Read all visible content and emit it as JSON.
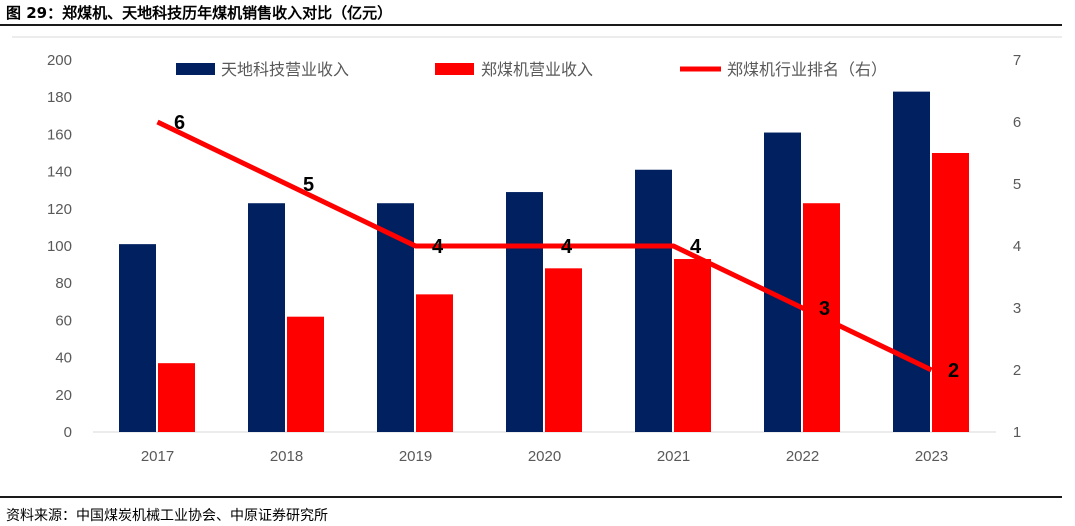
{
  "figure": {
    "title": "图 29：郑煤机、天地科技历年煤机销售收入对比（亿元）",
    "source": "资料来源：中国煤炭机械工业协会、中原证券研究所"
  },
  "colors": {
    "series_navy": "#002060",
    "series_red": "#ff0000",
    "line_red": "#ff0000",
    "tick_text": "#595959",
    "rules": "#1a1a1a"
  },
  "chart_data": {
    "type": "bar",
    "categories": [
      "2017",
      "2018",
      "2019",
      "2020",
      "2021",
      "2022",
      "2023"
    ],
    "series": [
      {
        "name": "天地科技营业收入",
        "type": "bar",
        "axis": "left",
        "color": "#002060",
        "values": [
          101,
          123,
          123,
          129,
          141,
          161,
          183
        ]
      },
      {
        "name": "郑煤机营业收入",
        "type": "bar",
        "axis": "left",
        "color": "#ff0000",
        "values": [
          37,
          62,
          74,
          88,
          93,
          123,
          150
        ]
      },
      {
        "name": "郑煤机行业排名（右）",
        "type": "line",
        "axis": "right",
        "color": "#ff0000",
        "values": [
          6,
          5,
          4,
          4,
          4,
          3,
          2
        ],
        "data_labels": [
          "6",
          "5",
          "4",
          "4",
          "4",
          "3",
          "2"
        ]
      }
    ],
    "y_left": {
      "ylim": [
        0,
        200
      ],
      "ticks": [
        "0",
        "20",
        "40",
        "60",
        "80",
        "100",
        "120",
        "140",
        "160",
        "180",
        "200"
      ]
    },
    "y_right": {
      "ylim": [
        1,
        7
      ],
      "ticks": [
        "1",
        "2",
        "3",
        "4",
        "5",
        "6",
        "7"
      ]
    },
    "grid": false,
    "legend": "top"
  }
}
